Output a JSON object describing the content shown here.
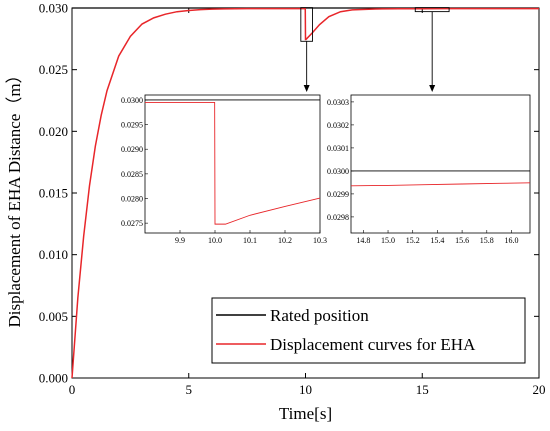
{
  "colors": {
    "rated": "#000000",
    "eha": "#e8262a",
    "axis": "#000000",
    "background": "#ffffff"
  },
  "chart_data": {
    "type": "line",
    "xlabel": "Time[s]",
    "ylabel": "Displacement of EHA Distance（m）",
    "xlim": [
      0,
      20
    ],
    "ylim": [
      0,
      0.03
    ],
    "xticks": [
      "0",
      "5",
      "10",
      "15",
      "20"
    ],
    "yticks": [
      "0.000",
      "0.005",
      "0.010",
      "0.015",
      "0.020",
      "0.025",
      "0.030"
    ],
    "legend_position": "bottom-right",
    "series": [
      {
        "name": "Rated position",
        "color": "#000000",
        "x": [
          0,
          20
        ],
        "y": [
          0.03,
          0.03
        ]
      },
      {
        "name": "Displacement curves for EHA",
        "color": "#e8262a",
        "x": [
          0,
          0.25,
          0.5,
          0.75,
          1.0,
          1.25,
          1.5,
          2.0,
          2.5,
          3.0,
          3.5,
          4.0,
          4.5,
          5.0,
          5.5,
          6.0,
          6.5,
          7.0,
          7.5,
          8.0,
          9.0,
          9.99,
          10.0,
          10.02,
          10.3,
          10.6,
          11.0,
          11.5,
          12.0,
          13.0,
          14.0,
          15.0,
          16.0,
          18.0,
          20.0
        ],
        "y": [
          0,
          0.0065,
          0.0115,
          0.0156,
          0.0188,
          0.0213,
          0.0233,
          0.0261,
          0.0277,
          0.0287,
          0.0292,
          0.0295,
          0.0297,
          0.0298,
          0.02987,
          0.02991,
          0.02993,
          0.02994,
          0.02995,
          0.02995,
          0.02995,
          0.02995,
          0.02745,
          0.02745,
          0.028,
          0.02865,
          0.0293,
          0.0297,
          0.02985,
          0.02992,
          0.02994,
          0.029935,
          0.029945,
          0.02995,
          0.02995
        ]
      }
    ],
    "insets": [
      {
        "xlim": [
          9.8,
          10.3
        ],
        "ylim": [
          0.0273,
          0.0301
        ],
        "xticks": [
          "9.9",
          "10.0",
          "10.1",
          "10.2",
          "10.3"
        ],
        "yticks": [
          "0.0275",
          "0.0280",
          "0.0285",
          "0.0290",
          "0.0295",
          "0.0300"
        ],
        "rated_y": 0.03,
        "eha_x": [
          9.8,
          9.999,
          10.0,
          10.03,
          10.1,
          10.2,
          10.3
        ],
        "eha_y": [
          0.02995,
          0.02995,
          0.02748,
          0.02748,
          0.02766,
          0.02784,
          0.02801
        ]
      },
      {
        "xlim": [
          14.7,
          16.15
        ],
        "ylim": [
          0.02973,
          0.03033
        ],
        "xticks": [
          "14.8",
          "15.0",
          "15.2",
          "15.4",
          "15.6",
          "15.8",
          "16.0"
        ],
        "yticks": [
          "0.0298",
          "0.0299",
          "0.0300",
          "0.0301",
          "0.0302",
          "0.0303"
        ],
        "rated_y": 0.03,
        "eha_x": [
          14.7,
          15.0,
          15.3,
          15.6,
          15.9,
          16.15
        ],
        "eha_y": [
          0.029935,
          0.029937,
          0.02994,
          0.029943,
          0.029946,
          0.029948
        ]
      }
    ]
  }
}
